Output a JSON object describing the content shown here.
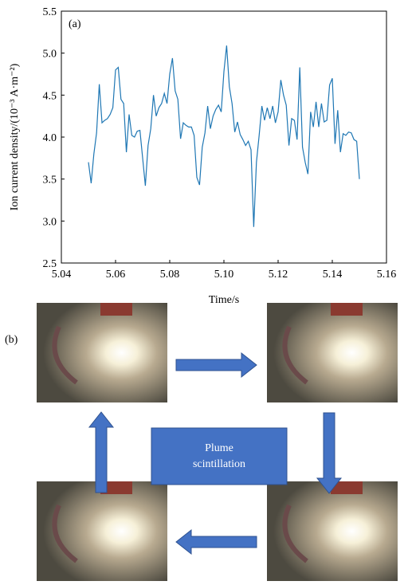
{
  "chart_data": {
    "type": "line",
    "title": "(a)",
    "x_label": "Time/s",
    "y_label": "Ion current density/(10⁻³ A·m⁻²)",
    "x": [
      5.05,
      5.051,
      5.052,
      5.053,
      5.054,
      5.055,
      5.056,
      5.057,
      5.058,
      5.059,
      5.06,
      5.061,
      5.062,
      5.063,
      5.064,
      5.065,
      5.066,
      5.067,
      5.068,
      5.069,
      5.07,
      5.071,
      5.072,
      5.073,
      5.074,
      5.075,
      5.076,
      5.077,
      5.078,
      5.079,
      5.08,
      5.081,
      5.082,
      5.083,
      5.084,
      5.085,
      5.086,
      5.087,
      5.088,
      5.089,
      5.09,
      5.091,
      5.092,
      5.093,
      5.094,
      5.095,
      5.096,
      5.097,
      5.098,
      5.099,
      5.1,
      5.101,
      5.102,
      5.103,
      5.104,
      5.105,
      5.106,
      5.107,
      5.108,
      5.109,
      5.11,
      5.111,
      5.112,
      5.113,
      5.114,
      5.115,
      5.116,
      5.117,
      5.118,
      5.119,
      5.12,
      5.121,
      5.122,
      5.123,
      5.124,
      5.125,
      5.126,
      5.127,
      5.128,
      5.129,
      5.13,
      5.131,
      5.132,
      5.133,
      5.134,
      5.135,
      5.136,
      5.137,
      5.138,
      5.139,
      5.14,
      5.141,
      5.142,
      5.143,
      5.144,
      5.145,
      5.146,
      5.147,
      5.148,
      5.149,
      5.15
    ],
    "series": [
      {
        "color": "#1f77b4",
        "values": [
          3.7,
          3.45,
          3.8,
          4.05,
          4.63,
          4.17,
          4.2,
          4.22,
          4.27,
          4.35,
          4.8,
          4.83,
          4.45,
          4.4,
          3.82,
          4.27,
          4.02,
          4.0,
          4.07,
          4.08,
          3.75,
          3.42,
          3.9,
          4.1,
          4.5,
          4.25,
          4.35,
          4.4,
          4.52,
          4.4,
          4.75,
          4.94,
          4.55,
          4.45,
          3.98,
          4.17,
          4.14,
          4.12,
          4.12,
          4.02,
          3.52,
          3.43,
          3.88,
          4.05,
          4.37,
          4.1,
          4.25,
          4.33,
          4.38,
          4.3,
          4.78,
          5.09,
          4.6,
          4.4,
          4.06,
          4.18,
          4.03,
          3.97,
          3.9,
          3.95,
          3.85,
          2.93,
          3.7,
          4.02,
          4.37,
          4.2,
          4.35,
          4.22,
          4.37,
          4.17,
          4.3,
          4.68,
          4.5,
          4.38,
          3.9,
          4.22,
          4.2,
          3.97,
          4.83,
          3.88,
          3.7,
          3.56,
          4.3,
          4.12,
          4.42,
          4.12,
          4.4,
          4.18,
          4.2,
          4.62,
          4.7,
          3.92,
          4.32,
          3.82,
          4.04,
          4.02,
          4.06,
          4.05,
          3.97,
          3.95,
          3.5
        ]
      }
    ],
    "xlim": [
      5.04,
      5.16
    ],
    "ylim": [
      2.5,
      5.5
    ],
    "xticks": [
      {
        "value": 5.04,
        "label": "5.04"
      },
      {
        "value": 5.06,
        "label": "5.06"
      },
      {
        "value": 5.08,
        "label": "5.08"
      },
      {
        "value": 5.1,
        "label": "5.10"
      },
      {
        "value": 5.12,
        "label": "5.12"
      },
      {
        "value": 5.14,
        "label": "5.14"
      },
      {
        "value": 5.16,
        "label": "5.16"
      }
    ],
    "yticks": [
      2.5,
      {
        "value": 3.0,
        "label": "3.0"
      },
      3.5,
      {
        "value": 4.0,
        "label": "4.0"
      },
      4.5,
      {
        "value": 5.0,
        "label": "5.0"
      },
      5.5
    ]
  },
  "diagram": {
    "label": "(b)",
    "center_text": [
      "Plume",
      "scintillation"
    ]
  }
}
